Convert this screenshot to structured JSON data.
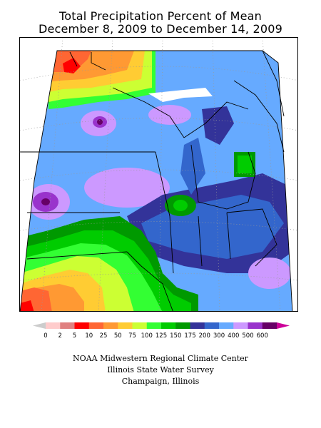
{
  "map": {
    "title": "Total Precipitation Percent of Mean",
    "subtitle": "December 8, 2009 to December 14, 2009"
  },
  "legend": {
    "labels": [
      "0",
      "2",
      "5",
      "10",
      "25",
      "50",
      "75",
      "100",
      "125",
      "150",
      "175",
      "200",
      "300",
      "400",
      "500",
      "600"
    ],
    "colors": [
      "#ffcccc",
      "#e08080",
      "#ff0000",
      "#ff6633",
      "#ff9933",
      "#ffcc33",
      "#ccff33",
      "#33ff33",
      "#00cc00",
      "#009900",
      "#333399",
      "#3366cc",
      "#66aaff",
      "#cc99ff",
      "#9933cc",
      "#660066"
    ],
    "low_arrow_color": "#cccccc",
    "high_arrow_color": "#cc0099"
  },
  "footer": {
    "line1": "NOAA Midwestern Regional Climate Center",
    "line2": "Illinois State Water Survey",
    "line3": "Champaign, Illinois"
  }
}
